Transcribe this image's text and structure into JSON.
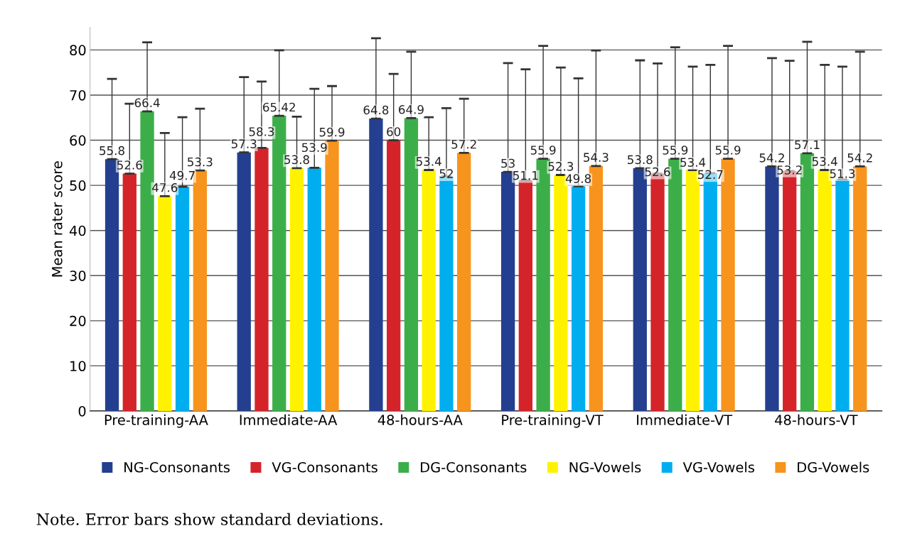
{
  "chart_data": {
    "type": "bar",
    "ylabel": "Mean rater score",
    "categories": [
      "Pre-training-AA",
      "Immediate-AA",
      "48-hours-AA",
      "Pre-training-VT",
      "Immediate-VT",
      "48-hours-VT"
    ],
    "series": [
      {
        "name": "NG-Consonants",
        "color": "#243f8f",
        "values": [
          55.8,
          57.3,
          64.8,
          53,
          53.8,
          54.2
        ],
        "errors": [
          17.8,
          16.7,
          17.8,
          24.1,
          23.9,
          24.0
        ]
      },
      {
        "name": "VG-Consonants",
        "color": "#d4242a",
        "values": [
          52.6,
          58.3,
          60,
          51.1,
          52.6,
          53.2
        ],
        "errors": [
          15.5,
          14.7,
          14.7,
          24.6,
          24.4,
          24.4
        ]
      },
      {
        "name": "DG-Consonants",
        "color": "#3cae49",
        "values": [
          66.4,
          65.42,
          64.9,
          55.9,
          55.9,
          57.1
        ],
        "errors": [
          15.3,
          14.5,
          14.7,
          25.0,
          24.7,
          24.7
        ]
      },
      {
        "name": "NG-Vowels",
        "color": "#fff200",
        "values": [
          47.6,
          53.8,
          53.4,
          52.3,
          53.4,
          53.4
        ],
        "errors": [
          14.0,
          11.4,
          11.7,
          23.8,
          22.9,
          23.3
        ]
      },
      {
        "name": "VG-Vowels",
        "color": "#00aeef",
        "values": [
          49.7,
          53.9,
          52,
          49.8,
          52.7,
          51.3
        ],
        "errors": [
          15.4,
          17.5,
          15.1,
          23.9,
          24.0,
          25.0
        ]
      },
      {
        "name": "DG-Vowels",
        "color": "#f7941d",
        "values": [
          53.3,
          59.9,
          57.2,
          54.3,
          55.9,
          54.2
        ],
        "errors": [
          13.7,
          12.1,
          12.0,
          25.6,
          25.0,
          25.4
        ]
      }
    ],
    "ylim": [
      0,
      85
    ],
    "yticks": [
      0,
      10,
      20,
      30,
      40,
      50,
      60,
      70,
      80
    ],
    "grid": "y",
    "legend": "bottom",
    "data_labels": true,
    "annotations": [
      "Note. Error bars show standard deviations."
    ]
  }
}
